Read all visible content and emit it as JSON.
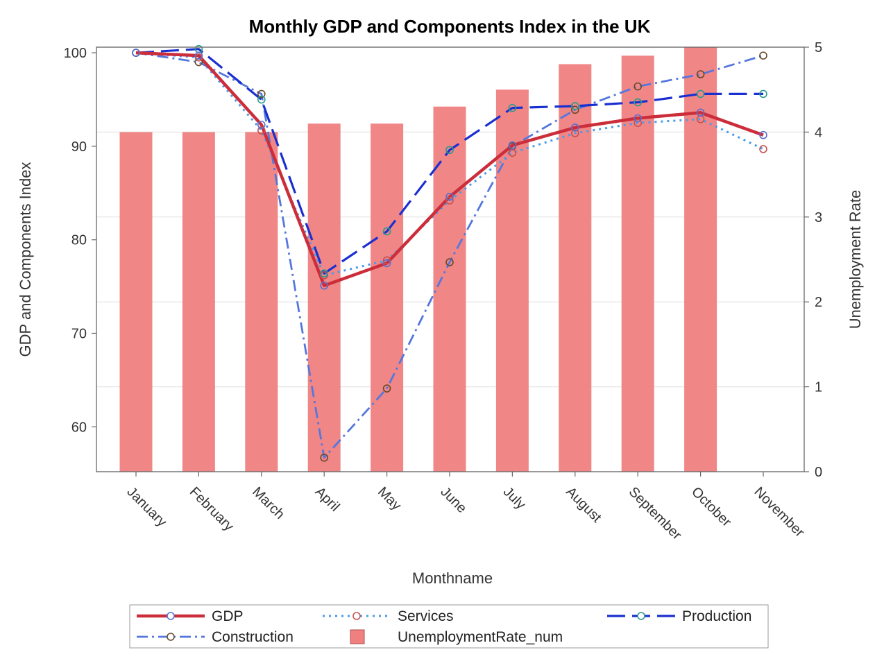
{
  "chart_data": {
    "type": "bar-line-combo",
    "title": "Monthly GDP and Components Index in the UK",
    "xlabel": "Monthname",
    "ylabel": "GDP and Components Index",
    "y2label": "Unemployment Rate",
    "categories": [
      "January",
      "February",
      "March",
      "April",
      "May",
      "June",
      "July",
      "August",
      "September",
      "October",
      "November"
    ],
    "ylim": [
      55.2,
      100.6
    ],
    "yticks": [
      60,
      70,
      80,
      90,
      100
    ],
    "y2lim": [
      0,
      5
    ],
    "y2ticks": [
      0,
      1,
      2,
      3,
      4,
      5
    ],
    "bars": {
      "name": "UnemploymentRate_num",
      "axis": "right",
      "color": "#f08080",
      "values": [
        4.0,
        4.0,
        4.0,
        4.1,
        4.1,
        4.3,
        4.5,
        4.8,
        4.9,
        5.0,
        null
      ]
    },
    "series": [
      {
        "name": "GDP",
        "color": "#cc2d3a",
        "values": [
          100,
          99.7,
          92.3,
          75.1,
          77.5,
          84.6,
          90.1,
          92.0,
          93.0,
          93.6,
          91.2
        ]
      },
      {
        "name": "Services",
        "color": "#4a9be8",
        "values": [
          100,
          99.5,
          91.7,
          76.2,
          77.8,
          84.2,
          89.3,
          91.4,
          92.5,
          92.9,
          89.7
        ]
      },
      {
        "name": "Production",
        "color": "#1a2fd0",
        "values": [
          100,
          100.4,
          95.0,
          76.4,
          80.9,
          89.6,
          94.1,
          94.3,
          94.7,
          95.6,
          95.6
        ]
      },
      {
        "name": "Construction",
        "color": "#5577dd",
        "values": [
          100,
          99.0,
          95.6,
          56.7,
          64.1,
          77.6,
          90.0,
          93.9,
          96.4,
          97.7,
          99.7
        ]
      }
    ],
    "legend": {
      "placement": "bottom",
      "entries": [
        "GDP",
        "Services",
        "Production",
        "Construction",
        "UnemploymentRate_num"
      ]
    },
    "grid": true
  }
}
